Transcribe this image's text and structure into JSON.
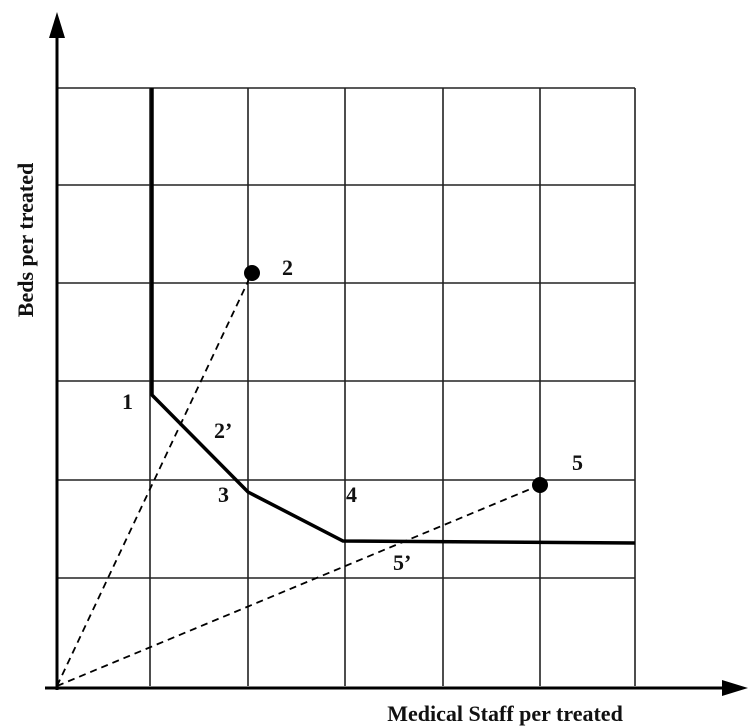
{
  "axes": {
    "x_label": "Medical Staff per treated",
    "y_label": "Beds per treated"
  },
  "points": [
    {
      "label": "1"
    },
    {
      "label": "2"
    },
    {
      "label": "2’"
    },
    {
      "label": "3"
    },
    {
      "label": "4"
    },
    {
      "label": "5"
    },
    {
      "label": "5’"
    }
  ]
}
